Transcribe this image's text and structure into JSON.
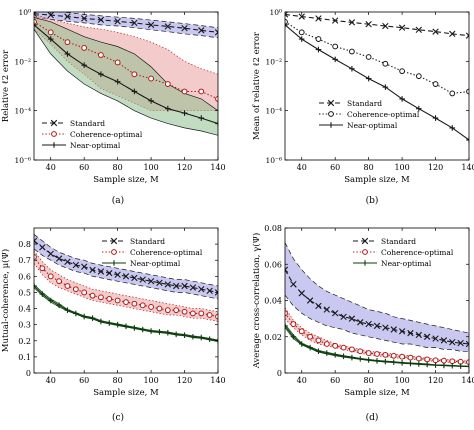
{
  "chart_data": [
    {
      "type": "line",
      "panel_label": "(a)",
      "xlabel": "Sample size, M",
      "ylabel": "Relative ℓ2 error",
      "xlim": [
        30,
        140
      ],
      "ylim": [
        1e-06,
        1
      ],
      "yscale": "log",
      "xticks": [
        40,
        60,
        80,
        100,
        120,
        140
      ],
      "yticks": [
        1e-06,
        0.0001,
        0.01,
        1
      ],
      "ytick_labels": [
        "10⁻⁶",
        "10⁻⁴",
        "10⁻²",
        "10⁰"
      ],
      "legend": "bottom-left",
      "x": [
        30,
        40,
        50,
        60,
        70,
        80,
        90,
        100,
        110,
        120,
        130,
        140
      ],
      "series": [
        {
          "name": "Standard",
          "style": "dashed",
          "marker": "x",
          "color": "#1a1a1a",
          "band_color": "#9b9be3",
          "values": [
            0.85,
            0.75,
            0.65,
            0.55,
            0.48,
            0.42,
            0.36,
            0.3,
            0.26,
            0.22,
            0.18,
            0.15
          ],
          "lower": [
            0.6,
            0.5,
            0.42,
            0.36,
            0.3,
            0.27,
            0.23,
            0.19,
            0.16,
            0.13,
            0.11,
            0.09
          ],
          "upper": [
            1.2,
            1.1,
            0.95,
            0.8,
            0.7,
            0.62,
            0.55,
            0.47,
            0.4,
            0.34,
            0.28,
            0.23
          ]
        },
        {
          "name": "Coherence-optimal",
          "style": "dotted",
          "marker": "o",
          "color": "#b01818",
          "band_color": "#eaa0a0",
          "values": [
            0.4,
            0.15,
            0.06,
            0.035,
            0.018,
            0.009,
            0.003,
            0.002,
            0.0012,
            0.0006,
            0.0006,
            0.0003
          ],
          "lower": [
            0.2,
            0.05,
            0.01,
            0.003,
            0.0008,
            0.0004,
            0.0002,
            0.0001,
            0.0001,
            0.0001,
            0.0001,
            0.0001
          ],
          "upper": [
            0.8,
            0.5,
            0.35,
            0.25,
            0.2,
            0.15,
            0.1,
            0.06,
            0.03,
            0.01,
            0.005,
            0.003
          ]
        },
        {
          "name": "Near-optimal",
          "style": "solid",
          "marker": "+",
          "color": "#1a1a1a",
          "band_color": "#8fbf8f",
          "values": [
            0.3,
            0.08,
            0.02,
            0.007,
            0.003,
            0.0015,
            0.0006,
            0.00025,
            0.00012,
            8e-05,
            5e-05,
            3e-05
          ],
          "lower": [
            0.2,
            0.02,
            0.004,
            0.0012,
            0.0005,
            0.00025,
            0.0001,
            5e-05,
            3e-05,
            2e-05,
            1.5e-05,
            1e-05
          ],
          "upper": [
            0.6,
            0.4,
            0.2,
            0.1,
            0.06,
            0.04,
            0.02,
            0.006,
            0.0012,
            0.0005,
            0.0003,
            0.0001
          ]
        }
      ]
    },
    {
      "type": "line",
      "panel_label": "(b)",
      "xlabel": "Sample size, M",
      "ylabel": "Mean of relative ℓ2 error",
      "xlim": [
        30,
        140
      ],
      "ylim": [
        1e-06,
        1
      ],
      "yscale": "log",
      "xticks": [
        40,
        60,
        80,
        100,
        120,
        140
      ],
      "yticks": [
        1e-06,
        0.0001,
        0.01,
        1
      ],
      "ytick_labels": [
        "10⁻⁶",
        "10⁻⁴",
        "10⁻²",
        "10⁰"
      ],
      "legend": "top-center",
      "x": [
        30,
        40,
        50,
        60,
        70,
        80,
        90,
        100,
        110,
        120,
        130,
        140
      ],
      "series": [
        {
          "name": "Standard",
          "style": "dashed",
          "marker": "x",
          "color": "#1a1a1a",
          "values": [
            0.8,
            0.65,
            0.55,
            0.45,
            0.38,
            0.32,
            0.27,
            0.23,
            0.19,
            0.16,
            0.13,
            0.11
          ]
        },
        {
          "name": "Coherence-optimal",
          "style": "dotted",
          "marker": "o",
          "color": "#1a1a1a",
          "values": [
            0.4,
            0.15,
            0.08,
            0.04,
            0.025,
            0.015,
            0.008,
            0.004,
            0.0025,
            0.0012,
            0.0005,
            0.0006
          ]
        },
        {
          "name": "Near-optimal",
          "style": "solid",
          "marker": "+",
          "color": "#1a1a1a",
          "values": [
            0.3,
            0.08,
            0.03,
            0.012,
            0.005,
            0.002,
            0.0009,
            0.0003,
            0.00012,
            5e-05,
            2e-05,
            6.5e-06
          ]
        }
      ]
    },
    {
      "type": "line",
      "panel_label": "(c)",
      "xlabel": "Sample size, M",
      "ylabel": "Mutual-coherence, μ(Ψ)",
      "xlim": [
        30,
        140
      ],
      "ylim": [
        0,
        0.9
      ],
      "xticks": [
        40,
        60,
        80,
        100,
        120,
        140
      ],
      "yticks": [
        0,
        0.1,
        0.2,
        0.3,
        0.4,
        0.5,
        0.6,
        0.7,
        0.8
      ],
      "ytick_labels": [
        "0",
        "0.1",
        "0.2",
        "0.3",
        "0.4",
        "0.5",
        "0.6",
        "0.7",
        "0.8"
      ],
      "legend": "top-right",
      "x": [
        30,
        35,
        40,
        45,
        50,
        55,
        60,
        65,
        70,
        75,
        80,
        85,
        90,
        95,
        100,
        105,
        110,
        115,
        120,
        125,
        130,
        135,
        140
      ],
      "series": [
        {
          "name": "Standard",
          "style": "dashed",
          "marker": "x",
          "color": "#1a1a1a",
          "band_color": "#9b9be3",
          "values": [
            0.82,
            0.78,
            0.74,
            0.71,
            0.69,
            0.67,
            0.66,
            0.64,
            0.63,
            0.62,
            0.61,
            0.6,
            0.59,
            0.58,
            0.57,
            0.56,
            0.55,
            0.54,
            0.54,
            0.53,
            0.52,
            0.51,
            0.5
          ],
          "lower": [
            0.77,
            0.73,
            0.7,
            0.67,
            0.65,
            0.63,
            0.62,
            0.6,
            0.59,
            0.58,
            0.57,
            0.56,
            0.55,
            0.54,
            0.53,
            0.52,
            0.51,
            0.5,
            0.5,
            0.49,
            0.48,
            0.47,
            0.46
          ],
          "upper": [
            0.86,
            0.82,
            0.78,
            0.75,
            0.73,
            0.71,
            0.7,
            0.68,
            0.67,
            0.66,
            0.65,
            0.64,
            0.63,
            0.62,
            0.61,
            0.6,
            0.59,
            0.58,
            0.58,
            0.57,
            0.56,
            0.55,
            0.54
          ]
        },
        {
          "name": "Coherence-optimal",
          "style": "dotted",
          "marker": "o",
          "color": "#b01818",
          "band_color": "#eaa0a0",
          "values": [
            0.72,
            0.65,
            0.6,
            0.57,
            0.54,
            0.52,
            0.5,
            0.48,
            0.47,
            0.46,
            0.45,
            0.44,
            0.43,
            0.42,
            0.41,
            0.4,
            0.39,
            0.39,
            0.38,
            0.37,
            0.37,
            0.36,
            0.35
          ],
          "lower": [
            0.68,
            0.61,
            0.56,
            0.53,
            0.51,
            0.49,
            0.47,
            0.45,
            0.44,
            0.43,
            0.42,
            0.41,
            0.4,
            0.39,
            0.38,
            0.37,
            0.36,
            0.36,
            0.35,
            0.34,
            0.34,
            0.33,
            0.32
          ],
          "upper": [
            0.76,
            0.69,
            0.64,
            0.61,
            0.58,
            0.56,
            0.54,
            0.52,
            0.51,
            0.5,
            0.49,
            0.48,
            0.47,
            0.46,
            0.45,
            0.44,
            0.43,
            0.42,
            0.41,
            0.4,
            0.4,
            0.39,
            0.38
          ]
        },
        {
          "name": "Near-optimal",
          "style": "solid",
          "marker": "+",
          "color": "#0d3d0d",
          "band_color": "#8fbf8f",
          "values": [
            0.54,
            0.49,
            0.45,
            0.42,
            0.39,
            0.37,
            0.35,
            0.34,
            0.32,
            0.31,
            0.3,
            0.29,
            0.28,
            0.27,
            0.26,
            0.255,
            0.25,
            0.24,
            0.235,
            0.225,
            0.22,
            0.21,
            0.2
          ],
          "lower": [
            0.53,
            0.48,
            0.44,
            0.41,
            0.385,
            0.365,
            0.345,
            0.335,
            0.315,
            0.305,
            0.295,
            0.285,
            0.275,
            0.265,
            0.255,
            0.25,
            0.245,
            0.235,
            0.23,
            0.22,
            0.215,
            0.205,
            0.195
          ],
          "upper": [
            0.55,
            0.5,
            0.46,
            0.43,
            0.395,
            0.375,
            0.355,
            0.345,
            0.325,
            0.315,
            0.305,
            0.295,
            0.285,
            0.275,
            0.265,
            0.26,
            0.255,
            0.245,
            0.24,
            0.23,
            0.225,
            0.215,
            0.205
          ]
        }
      ]
    },
    {
      "type": "line",
      "panel_label": "(d)",
      "xlabel": "Sample size, M",
      "ylabel": "Average cross-correlation, γ(Ψ)",
      "xlim": [
        30,
        140
      ],
      "ylim": [
        0,
        0.08
      ],
      "xticks": [
        40,
        60,
        80,
        100,
        120,
        140
      ],
      "yticks": [
        0,
        0.02,
        0.04,
        0.06,
        0.08
      ],
      "ytick_labels": [
        "0",
        "0.02",
        "0.04",
        "0.06",
        "0.08"
      ],
      "legend": "top-right",
      "x": [
        30,
        35,
        40,
        45,
        50,
        55,
        60,
        65,
        70,
        75,
        80,
        85,
        90,
        95,
        100,
        105,
        110,
        115,
        120,
        125,
        130,
        135,
        140
      ],
      "series": [
        {
          "name": "Standard",
          "style": "dashed",
          "marker": "x",
          "color": "#1a1a1a",
          "band_color": "#9b9be3",
          "values": [
            0.057,
            0.049,
            0.044,
            0.04,
            0.037,
            0.035,
            0.033,
            0.031,
            0.03,
            0.028,
            0.027,
            0.026,
            0.025,
            0.024,
            0.023,
            0.022,
            0.021,
            0.02,
            0.019,
            0.018,
            0.017,
            0.0165,
            0.016
          ],
          "lower": [
            0.043,
            0.037,
            0.033,
            0.03,
            0.028,
            0.026,
            0.025,
            0.024,
            0.022,
            0.021,
            0.02,
            0.019,
            0.018,
            0.017,
            0.016,
            0.016,
            0.015,
            0.014,
            0.014,
            0.013,
            0.013,
            0.012,
            0.012
          ],
          "upper": [
            0.072,
            0.063,
            0.057,
            0.052,
            0.048,
            0.045,
            0.043,
            0.041,
            0.039,
            0.037,
            0.035,
            0.034,
            0.033,
            0.031,
            0.03,
            0.029,
            0.028,
            0.027,
            0.026,
            0.025,
            0.024,
            0.023,
            0.022
          ]
        },
        {
          "name": "Coherence-optimal",
          "style": "dotted",
          "marker": "o",
          "color": "#b01818",
          "band_color": "#eaa0a0",
          "values": [
            0.033,
            0.027,
            0.023,
            0.02,
            0.018,
            0.016,
            0.015,
            0.014,
            0.013,
            0.012,
            0.011,
            0.0105,
            0.01,
            0.0095,
            0.009,
            0.0085,
            0.008,
            0.0075,
            0.007,
            0.0068,
            0.0065,
            0.0062,
            0.006
          ],
          "lower": [
            0.03,
            0.025,
            0.021,
            0.018,
            0.016,
            0.015,
            0.014,
            0.013,
            0.012,
            0.011,
            0.01,
            0.0095,
            0.009,
            0.0085,
            0.008,
            0.0077,
            0.0072,
            0.0068,
            0.0064,
            0.0061,
            0.0058,
            0.0056,
            0.0054
          ],
          "upper": [
            0.036,
            0.029,
            0.025,
            0.022,
            0.02,
            0.018,
            0.016,
            0.015,
            0.014,
            0.013,
            0.012,
            0.0115,
            0.011,
            0.0105,
            0.01,
            0.0093,
            0.0088,
            0.0082,
            0.0077,
            0.0075,
            0.0072,
            0.0068,
            0.0066
          ]
        },
        {
          "name": "Near-optimal",
          "style": "solid",
          "marker": "+",
          "color": "#0d3d0d",
          "band_color": "#8fbf8f",
          "values": [
            0.026,
            0.02,
            0.016,
            0.014,
            0.012,
            0.011,
            0.01,
            0.0092,
            0.0085,
            0.0078,
            0.0072,
            0.0067,
            0.0063,
            0.006,
            0.0056,
            0.0053,
            0.005,
            0.0047,
            0.0044,
            0.0042,
            0.004,
            0.0038,
            0.0036
          ],
          "lower": [
            0.025,
            0.019,
            0.0155,
            0.0135,
            0.0115,
            0.0105,
            0.0095,
            0.0088,
            0.0081,
            0.0075,
            0.0069,
            0.0064,
            0.006,
            0.0057,
            0.0053,
            0.005,
            0.0047,
            0.0044,
            0.0042,
            0.004,
            0.0038,
            0.0036,
            0.0034
          ],
          "upper": [
            0.027,
            0.021,
            0.0165,
            0.0145,
            0.0125,
            0.0115,
            0.0105,
            0.0096,
            0.0089,
            0.0081,
            0.0075,
            0.007,
            0.0066,
            0.0063,
            0.0059,
            0.0056,
            0.0053,
            0.005,
            0.0046,
            0.0044,
            0.0042,
            0.004,
            0.0038
          ]
        }
      ]
    }
  ]
}
